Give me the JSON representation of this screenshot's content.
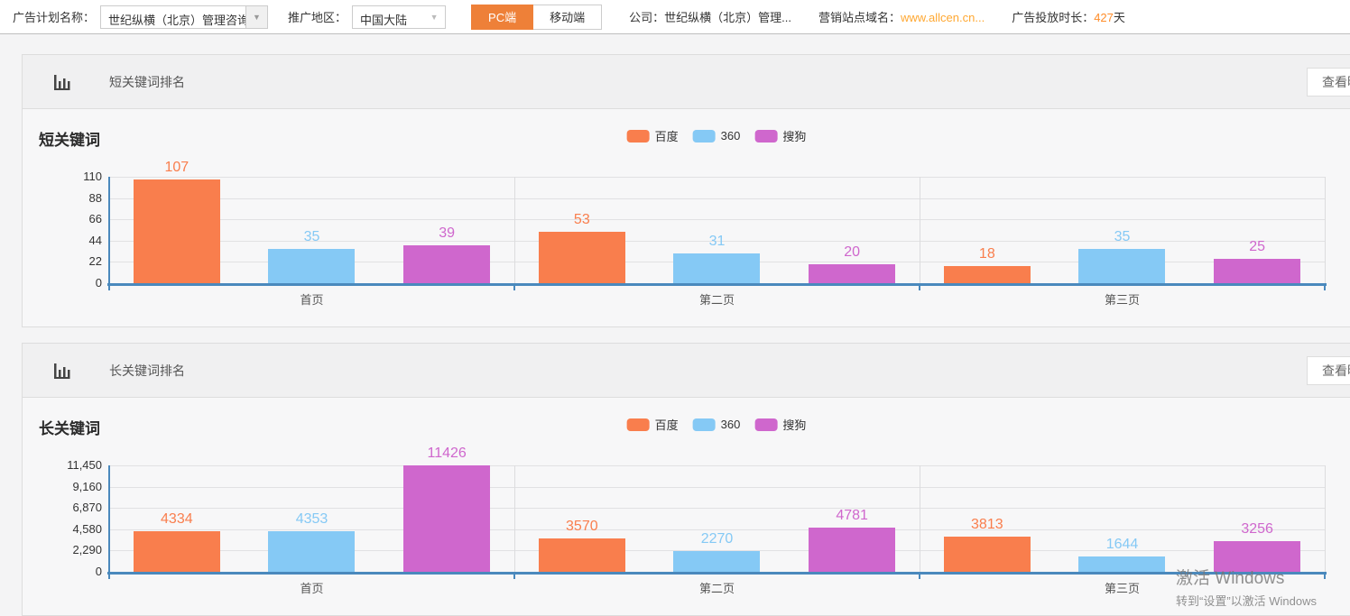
{
  "topbar": {
    "plan_label": "广告计划名称：",
    "plan_value": "世纪纵横（北京）管理咨询有限",
    "region_label": "推广地区：",
    "region_value": "中国大陆",
    "pc_button": "PC端",
    "mobile_button": "移动端",
    "company_label": "公司：",
    "company_value": "世纪纵横（北京）管理...",
    "domain_label": "营销站点域名：",
    "domain_value": "www.allcen.cn...",
    "duration_label": "广告投放时长：",
    "duration_value": "427",
    "duration_unit": "天"
  },
  "panels": [
    {
      "header_title": "短关键词排名",
      "view_button": "查看明细"
    },
    {
      "header_title": "长关键词排名",
      "view_button": "查看明细"
    }
  ],
  "legend": {
    "items": [
      "百度",
      "360",
      "搜狗"
    ]
  },
  "series_colors": [
    "#f97e4d",
    "#85c9f5",
    "#cf67cd"
  ],
  "axis_color": "#4a89bd",
  "chart_data": [
    {
      "type": "bar",
      "title": "短关键词",
      "categories": [
        "首页",
        "第二页",
        "第三页"
      ],
      "series": [
        {
          "name": "百度",
          "values": [
            107,
            53,
            18
          ]
        },
        {
          "name": "360",
          "values": [
            35,
            31,
            35
          ]
        },
        {
          "name": "搜狗",
          "values": [
            39,
            20,
            25
          ]
        }
      ],
      "yticks": [
        "110",
        "88",
        "66",
        "44",
        "22",
        "0"
      ],
      "ylim": [
        0,
        110
      ],
      "grid": true,
      "legend_position": "top-center"
    },
    {
      "type": "bar",
      "title": "长关键词",
      "categories": [
        "首页",
        "第二页",
        "第三页"
      ],
      "series": [
        {
          "name": "百度",
          "values": [
            4334,
            3570,
            3813
          ]
        },
        {
          "name": "360",
          "values": [
            4353,
            2270,
            1644
          ]
        },
        {
          "name": "搜狗",
          "values": [
            11426,
            4781,
            3256
          ]
        }
      ],
      "yticks": [
        "11,450",
        "9,160",
        "6,870",
        "4,580",
        "2,290",
        "0"
      ],
      "ylim": [
        0,
        11450
      ],
      "grid": true,
      "legend_position": "top-center"
    }
  ],
  "watermark": {
    "line1": "激活 Windows",
    "line2": "转到“设置”以激活 Windows"
  }
}
